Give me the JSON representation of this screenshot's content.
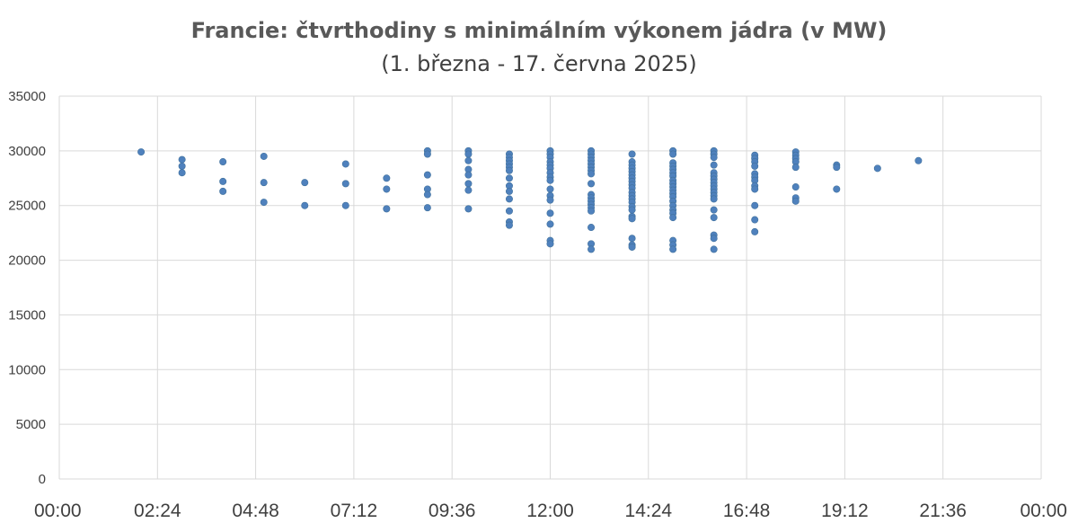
{
  "chart_data": {
    "type": "scatter",
    "title": "Francie: čtvrthodiny s minimálním výkonem jádra (v MW)",
    "subtitle": "(1. března - 17. června 2025)",
    "xlabel": "",
    "ylabel": "",
    "xlim": [
      "00:00",
      "24:00"
    ],
    "ylim": [
      0,
      35000
    ],
    "x_ticks": [
      "00:00",
      "02:24",
      "04:48",
      "07:12",
      "09:36",
      "12:00",
      "14:24",
      "16:48",
      "19:12",
      "21:36",
      "00:00"
    ],
    "y_ticks": [
      "0",
      "5000",
      "10000",
      "15000",
      "20000",
      "25000",
      "30000",
      "35000"
    ],
    "grid": true,
    "legend": "none",
    "point_color": "#4f81bd",
    "points": [
      {
        "x": "02:00",
        "y": 29900
      },
      {
        "x": "03:00",
        "y": 29200
      },
      {
        "x": "03:00",
        "y": 28600
      },
      {
        "x": "03:00",
        "y": 28000
      },
      {
        "x": "04:00",
        "y": 29000
      },
      {
        "x": "04:00",
        "y": 27200
      },
      {
        "x": "04:00",
        "y": 26300
      },
      {
        "x": "05:00",
        "y": 29500
      },
      {
        "x": "05:00",
        "y": 27100
      },
      {
        "x": "05:00",
        "y": 25300
      },
      {
        "x": "06:00",
        "y": 27100
      },
      {
        "x": "06:00",
        "y": 25000
      },
      {
        "x": "07:00",
        "y": 28800
      },
      {
        "x": "07:00",
        "y": 27000
      },
      {
        "x": "07:00",
        "y": 25000
      },
      {
        "x": "08:00",
        "y": 27500
      },
      {
        "x": "08:00",
        "y": 26500
      },
      {
        "x": "08:00",
        "y": 24700
      },
      {
        "x": "09:00",
        "y": 30000
      },
      {
        "x": "09:00",
        "y": 29700
      },
      {
        "x": "09:00",
        "y": 27800
      },
      {
        "x": "09:00",
        "y": 26500
      },
      {
        "x": "09:00",
        "y": 26000
      },
      {
        "x": "09:00",
        "y": 24800
      },
      {
        "x": "10:00",
        "y": 30000
      },
      {
        "x": "10:00",
        "y": 29700
      },
      {
        "x": "10:00",
        "y": 29100
      },
      {
        "x": "10:00",
        "y": 28300
      },
      {
        "x": "10:00",
        "y": 27800
      },
      {
        "x": "10:00",
        "y": 27000
      },
      {
        "x": "10:00",
        "y": 26400
      },
      {
        "x": "10:00",
        "y": 24700
      },
      {
        "x": "11:00",
        "y": 29700
      },
      {
        "x": "11:00",
        "y": 29400
      },
      {
        "x": "11:00",
        "y": 29100
      },
      {
        "x": "11:00",
        "y": 28800
      },
      {
        "x": "11:00",
        "y": 28500
      },
      {
        "x": "11:00",
        "y": 28200
      },
      {
        "x": "11:00",
        "y": 27500
      },
      {
        "x": "11:00",
        "y": 26800
      },
      {
        "x": "11:00",
        "y": 26300
      },
      {
        "x": "11:00",
        "y": 25600
      },
      {
        "x": "11:00",
        "y": 24500
      },
      {
        "x": "11:00",
        "y": 23500
      },
      {
        "x": "11:00",
        "y": 23200
      },
      {
        "x": "12:00",
        "y": 30000
      },
      {
        "x": "12:00",
        "y": 29700
      },
      {
        "x": "12:00",
        "y": 29400
      },
      {
        "x": "12:00",
        "y": 29000
      },
      {
        "x": "12:00",
        "y": 28700
      },
      {
        "x": "12:00",
        "y": 28400
      },
      {
        "x": "12:00",
        "y": 28000
      },
      {
        "x": "12:00",
        "y": 27600
      },
      {
        "x": "12:00",
        "y": 27300
      },
      {
        "x": "12:00",
        "y": 26500
      },
      {
        "x": "12:00",
        "y": 25900
      },
      {
        "x": "12:00",
        "y": 25500
      },
      {
        "x": "12:00",
        "y": 24300
      },
      {
        "x": "12:00",
        "y": 23300
      },
      {
        "x": "12:00",
        "y": 21800
      },
      {
        "x": "12:00",
        "y": 21500
      },
      {
        "x": "13:00",
        "y": 30000
      },
      {
        "x": "13:00",
        "y": 29700
      },
      {
        "x": "13:00",
        "y": 29400
      },
      {
        "x": "13:00",
        "y": 29100
      },
      {
        "x": "13:00",
        "y": 28800
      },
      {
        "x": "13:00",
        "y": 28500
      },
      {
        "x": "13:00",
        "y": 28200
      },
      {
        "x": "13:00",
        "y": 27900
      },
      {
        "x": "13:00",
        "y": 27000
      },
      {
        "x": "13:00",
        "y": 26000
      },
      {
        "x": "13:00",
        "y": 25700
      },
      {
        "x": "13:00",
        "y": 25400
      },
      {
        "x": "13:00",
        "y": 25100
      },
      {
        "x": "13:00",
        "y": 24800
      },
      {
        "x": "13:00",
        "y": 24500
      },
      {
        "x": "13:00",
        "y": 23000
      },
      {
        "x": "13:00",
        "y": 21500
      },
      {
        "x": "13:00",
        "y": 21000
      },
      {
        "x": "14:00",
        "y": 29700
      },
      {
        "x": "14:00",
        "y": 29000
      },
      {
        "x": "14:00",
        "y": 28700
      },
      {
        "x": "14:00",
        "y": 28400
      },
      {
        "x": "14:00",
        "y": 28100
      },
      {
        "x": "14:00",
        "y": 27800
      },
      {
        "x": "14:00",
        "y": 27500
      },
      {
        "x": "14:00",
        "y": 27200
      },
      {
        "x": "14:00",
        "y": 26900
      },
      {
        "x": "14:00",
        "y": 26600
      },
      {
        "x": "14:00",
        "y": 26200
      },
      {
        "x": "14:00",
        "y": 25900
      },
      {
        "x": "14:00",
        "y": 25600
      },
      {
        "x": "14:00",
        "y": 25300
      },
      {
        "x": "14:00",
        "y": 24900
      },
      {
        "x": "14:00",
        "y": 24600
      },
      {
        "x": "14:00",
        "y": 24000
      },
      {
        "x": "14:00",
        "y": 23800
      },
      {
        "x": "14:00",
        "y": 22000
      },
      {
        "x": "14:00",
        "y": 21400
      },
      {
        "x": "14:00",
        "y": 21200
      },
      {
        "x": "15:00",
        "y": 30000
      },
      {
        "x": "15:00",
        "y": 29700
      },
      {
        "x": "15:00",
        "y": 28900
      },
      {
        "x": "15:00",
        "y": 28600
      },
      {
        "x": "15:00",
        "y": 28300
      },
      {
        "x": "15:00",
        "y": 28000
      },
      {
        "x": "15:00",
        "y": 27700
      },
      {
        "x": "15:00",
        "y": 27300
      },
      {
        "x": "15:00",
        "y": 27000
      },
      {
        "x": "15:00",
        "y": 26700
      },
      {
        "x": "15:00",
        "y": 26400
      },
      {
        "x": "15:00",
        "y": 26100
      },
      {
        "x": "15:00",
        "y": 25800
      },
      {
        "x": "15:00",
        "y": 25400
      },
      {
        "x": "15:00",
        "y": 25000
      },
      {
        "x": "15:00",
        "y": 24600
      },
      {
        "x": "15:00",
        "y": 24300
      },
      {
        "x": "15:00",
        "y": 23900
      },
      {
        "x": "15:00",
        "y": 21800
      },
      {
        "x": "15:00",
        "y": 21400
      },
      {
        "x": "15:00",
        "y": 21000
      },
      {
        "x": "16:00",
        "y": 30000
      },
      {
        "x": "16:00",
        "y": 29700
      },
      {
        "x": "16:00",
        "y": 29400
      },
      {
        "x": "16:00",
        "y": 28700
      },
      {
        "x": "16:00",
        "y": 28000
      },
      {
        "x": "16:00",
        "y": 27700
      },
      {
        "x": "16:00",
        "y": 27400
      },
      {
        "x": "16:00",
        "y": 27100
      },
      {
        "x": "16:00",
        "y": 26800
      },
      {
        "x": "16:00",
        "y": 26500
      },
      {
        "x": "16:00",
        "y": 26200
      },
      {
        "x": "16:00",
        "y": 25900
      },
      {
        "x": "16:00",
        "y": 25600
      },
      {
        "x": "16:00",
        "y": 24600
      },
      {
        "x": "16:00",
        "y": 23900
      },
      {
        "x": "16:00",
        "y": 22300
      },
      {
        "x": "16:00",
        "y": 22000
      },
      {
        "x": "16:00",
        "y": 21000
      },
      {
        "x": "17:00",
        "y": 29600
      },
      {
        "x": "17:00",
        "y": 29300
      },
      {
        "x": "17:00",
        "y": 29000
      },
      {
        "x": "17:00",
        "y": 28600
      },
      {
        "x": "17:00",
        "y": 27900
      },
      {
        "x": "17:00",
        "y": 27600
      },
      {
        "x": "17:00",
        "y": 27300
      },
      {
        "x": "17:00",
        "y": 26800
      },
      {
        "x": "17:00",
        "y": 26500
      },
      {
        "x": "17:00",
        "y": 25000
      },
      {
        "x": "17:00",
        "y": 23700
      },
      {
        "x": "17:00",
        "y": 22600
      },
      {
        "x": "18:00",
        "y": 29900
      },
      {
        "x": "18:00",
        "y": 29600
      },
      {
        "x": "18:00",
        "y": 29300
      },
      {
        "x": "18:00",
        "y": 29000
      },
      {
        "x": "18:00",
        "y": 28500
      },
      {
        "x": "18:00",
        "y": 26700
      },
      {
        "x": "18:00",
        "y": 25700
      },
      {
        "x": "18:00",
        "y": 25400
      },
      {
        "x": "19:00",
        "y": 28700
      },
      {
        "x": "19:00",
        "y": 28500
      },
      {
        "x": "19:00",
        "y": 26500
      },
      {
        "x": "20:00",
        "y": 28400
      },
      {
        "x": "21:00",
        "y": 29100
      }
    ]
  }
}
